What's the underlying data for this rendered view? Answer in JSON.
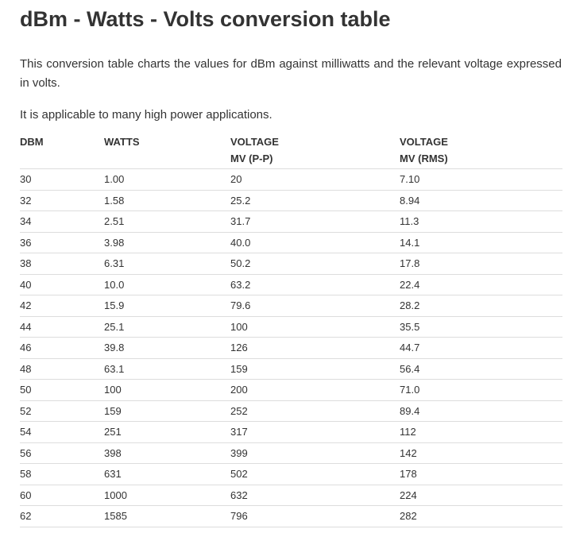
{
  "title": "dBm - Watts - Volts conversion table",
  "intro": "This conversion table charts the values for dBm against milliwatts and the relevant voltage expressed in volts.",
  "intro2": "It is applicable to many high power applications.",
  "table": {
    "headers": [
      {
        "line1": "DBM",
        "line2": ""
      },
      {
        "line1": "WATTS",
        "line2": ""
      },
      {
        "line1": "VOLTAGE",
        "line2": "MV (P-P)"
      },
      {
        "line1": "VOLTAGE",
        "line2": "MV (RMS)"
      }
    ],
    "rows": [
      [
        "30",
        "1.00",
        "20",
        "7.10"
      ],
      [
        "32",
        "1.58",
        "25.2",
        "8.94"
      ],
      [
        "34",
        "2.51",
        "31.7",
        "11.3"
      ],
      [
        "36",
        "3.98",
        "40.0",
        "14.1"
      ],
      [
        "38",
        "6.31",
        "50.2",
        "17.8"
      ],
      [
        "40",
        "10.0",
        "63.2",
        "22.4"
      ],
      [
        "42",
        "15.9",
        "79.6",
        "28.2"
      ],
      [
        "44",
        "25.1",
        "100",
        "35.5"
      ],
      [
        "46",
        "39.8",
        "126",
        "44.7"
      ],
      [
        "48",
        "63.1",
        "159",
        "56.4"
      ],
      [
        "50",
        "100",
        "200",
        "71.0"
      ],
      [
        "52",
        "159",
        "252",
        "89.4"
      ],
      [
        "54",
        "251",
        "317",
        "112"
      ],
      [
        "56",
        "398",
        "399",
        "142"
      ],
      [
        "58",
        "631",
        "502",
        "178"
      ],
      [
        "60",
        "1000",
        "632",
        "224"
      ],
      [
        "62",
        "1585",
        "796",
        "282"
      ]
    ]
  }
}
